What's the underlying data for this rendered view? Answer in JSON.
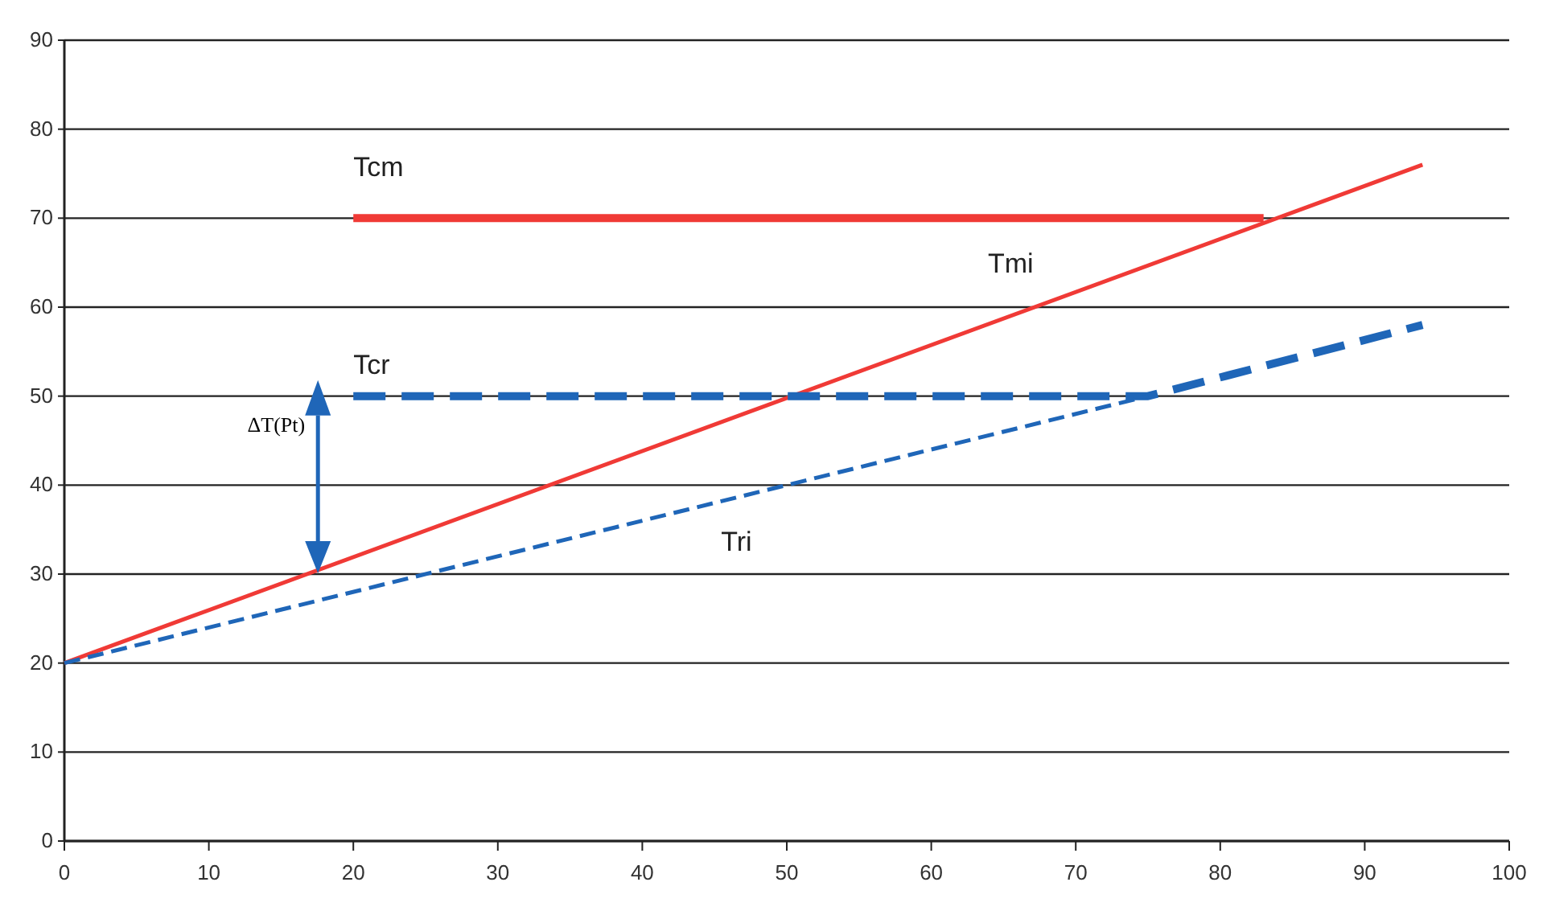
{
  "chart_data": {
    "type": "line",
    "xlim": [
      0,
      100
    ],
    "xticks": [
      0,
      10,
      20,
      30,
      40,
      50,
      60,
      70,
      80,
      90,
      100
    ],
    "ylim": [
      0,
      90
    ],
    "yticks": [
      0,
      10,
      20,
      30,
      40,
      50,
      60,
      70,
      80,
      90
    ],
    "grid": "y",
    "legend": false,
    "marker": "none",
    "series": [
      {
        "name": "Tcm",
        "color": "#f03a36",
        "x": [
          20,
          83
        ],
        "values": [
          70,
          70
        ],
        "line_style": "solid"
      },
      {
        "name": "Tmi",
        "color": "#f03a36",
        "x": [
          0,
          94
        ],
        "values": [
          20,
          76
        ],
        "line_style": "solid"
      },
      {
        "name": "Tcr",
        "color": "#1f66b8",
        "x": [
          20,
          75,
          94
        ],
        "values": [
          50,
          50,
          58
        ],
        "line_style": "dashed"
      },
      {
        "name": "Tri",
        "color": "#1f66b8",
        "x": [
          0,
          75
        ],
        "values": [
          20,
          50
        ],
        "line_style": "dashed"
      }
    ],
    "annotations": [
      "ΔT(Pt)"
    ]
  }
}
